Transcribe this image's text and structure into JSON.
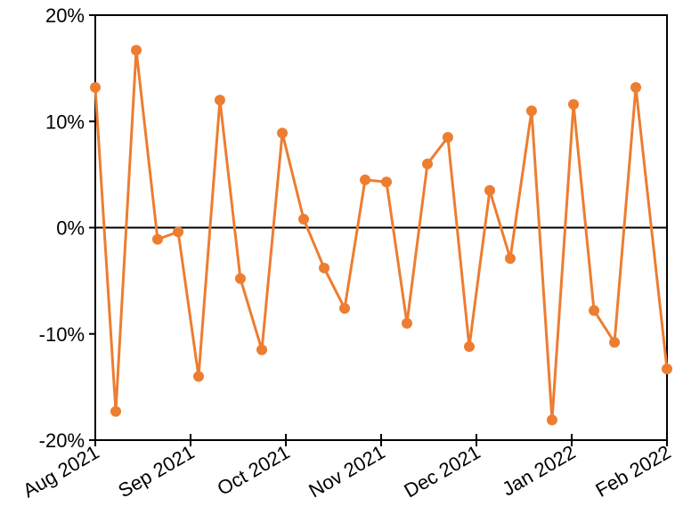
{
  "chart_data": {
    "type": "line",
    "x": [
      0,
      0.215,
      0.43,
      0.654,
      0.87,
      1.084,
      1.308,
      1.523,
      1.748,
      1.963,
      2.187,
      2.402,
      2.617,
      2.832,
      3.056,
      3.271,
      3.486,
      3.7,
      3.925,
      4.14,
      4.355,
      4.579,
      4.794,
      5.019,
      5.234,
      5.449,
      5.673,
      6
    ],
    "series": [
      {
        "color": "#ed7d31",
        "values": [
          13.2,
          -17.3,
          16.7,
          -1.1,
          -0.4,
          -14.0,
          12.0,
          -4.8,
          -11.5,
          8.9,
          0.8,
          -3.8,
          -7.6,
          4.5,
          4.3,
          -9.0,
          6.0,
          8.5,
          -11.2,
          3.5,
          -2.9,
          11.0,
          -18.1,
          11.6,
          -7.8,
          -10.8,
          13.2,
          -13.3
        ]
      }
    ],
    "xlim": [
      0,
      6
    ],
    "xticks": [
      {
        "value": 0,
        "label": "Aug 2021"
      },
      {
        "value": 1,
        "label": "Sep 2021"
      },
      {
        "value": 2,
        "label": "Oct 2021"
      },
      {
        "value": 3,
        "label": "Nov 2021"
      },
      {
        "value": 4,
        "label": "Dec 2021"
      },
      {
        "value": 5,
        "label": "Jan 2022"
      },
      {
        "value": 6,
        "label": "Feb 2022"
      }
    ],
    "ylim": [
      -20,
      20
    ],
    "yticks": [
      {
        "value": -20,
        "label": "-20%"
      },
      {
        "value": -10,
        "label": "-10%"
      },
      {
        "value": 0,
        "label": "0%"
      },
      {
        "value": 10,
        "label": "10%"
      },
      {
        "value": 20,
        "label": "20%"
      }
    ]
  }
}
